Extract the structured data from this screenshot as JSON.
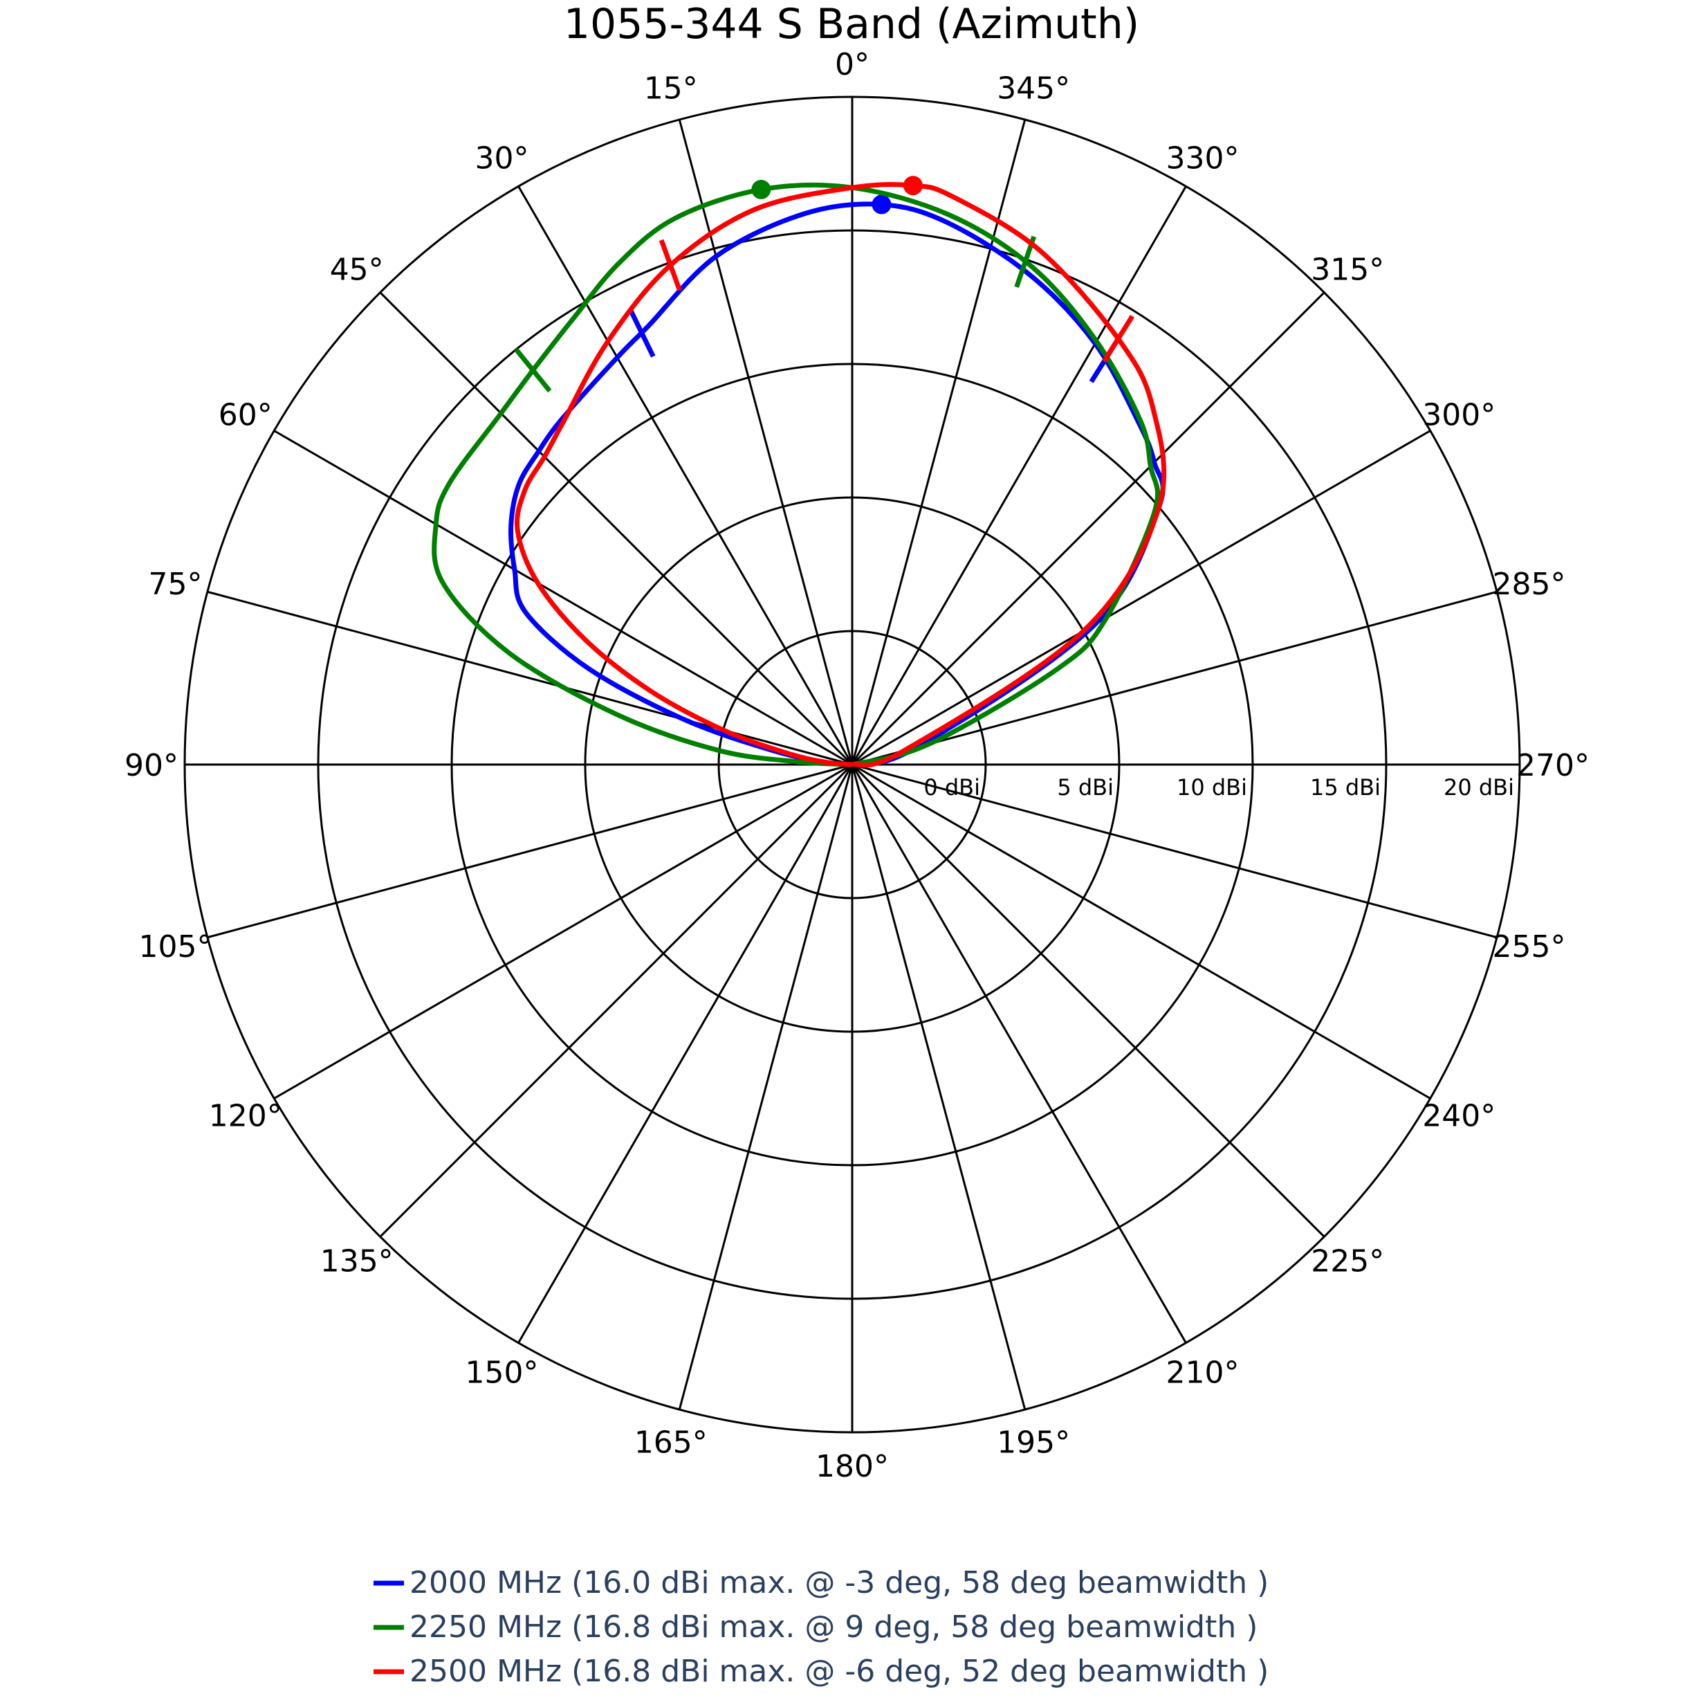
{
  "chart_data": {
    "type": "polar-line",
    "title": "1055-344 S Band (Azimuth)",
    "angular_axis": {
      "direction": "counterclockwise",
      "zero_at": "top",
      "tick_step_deg": 15,
      "tick_labels": [
        "0°",
        "15°",
        "30°",
        "45°",
        "60°",
        "75°",
        "90°",
        "105°",
        "120°",
        "135°",
        "150°",
        "165°",
        "180°",
        "195°",
        "210°",
        "225°",
        "240°",
        "255°",
        "270°",
        "285°",
        "300°",
        "315°",
        "330°",
        "345°"
      ]
    },
    "radial_axis": {
      "unit": "dBi",
      "range": [
        -5,
        20
      ],
      "tick_values": [
        0,
        5,
        10,
        15,
        20
      ],
      "tick_labels": [
        "0 dBi",
        "5 dBi",
        "10 dBi",
        "15 dBi",
        "20 dBi"
      ],
      "label_angle_deg": 270
    },
    "grid": true,
    "legend_position": "bottom",
    "series": [
      {
        "name": "2000 MHz (16.0 dBi max. @ -3 deg, 58 deg beamwidth )",
        "color": "#0000ff",
        "max_marker": {
          "angle_deg": -3,
          "value_dbi": 16.0
        },
        "beamwidth_markers_deg": [
          26,
          -32
        ],
        "points": [
          [
            -90,
            -5.0
          ],
          [
            -75,
            -2.5
          ],
          [
            -60,
            5.5
          ],
          [
            -50,
            10.0
          ],
          [
            -45,
            11.0
          ],
          [
            -40,
            11.7
          ],
          [
            -30,
            13.2
          ],
          [
            -20,
            14.5
          ],
          [
            -10,
            15.6
          ],
          [
            -3,
            16.0
          ],
          [
            5,
            15.7
          ],
          [
            15,
            14.7
          ],
          [
            25,
            13.1
          ],
          [
            30,
            12.6
          ],
          [
            40,
            11.9
          ],
          [
            45,
            11.6
          ],
          [
            50,
            11.3
          ],
          [
            55,
            10.6
          ],
          [
            60,
            9.6
          ],
          [
            65,
            8.5
          ],
          [
            70,
            5.5
          ],
          [
            75,
            1.5
          ],
          [
            80,
            -2.0
          ],
          [
            85,
            -4.0
          ],
          [
            90,
            -5.0
          ]
        ]
      },
      {
        "name": "2250 MHz (16.8 dBi max. @ 9 deg, 58 deg beamwidth )",
        "color": "#008000",
        "max_marker": {
          "angle_deg": 9,
          "value_dbi": 16.8
        },
        "beamwidth_markers_deg": [
          39,
          -19
        ],
        "points": [
          [
            -90,
            -5.0
          ],
          [
            -75,
            -2.0
          ],
          [
            -65,
            3.5
          ],
          [
            -60,
            6.0
          ],
          [
            -50,
            9.8
          ],
          [
            -45,
            10.8
          ],
          [
            -40,
            11.8
          ],
          [
            -30,
            13.3
          ],
          [
            -20,
            14.8
          ],
          [
            -10,
            15.9
          ],
          [
            0,
            16.6
          ],
          [
            9,
            16.8
          ],
          [
            18,
            16.5
          ],
          [
            25,
            15.7
          ],
          [
            32,
            14.7
          ],
          [
            39,
            14.0
          ],
          [
            45,
            13.6
          ],
          [
            55,
            13.4
          ],
          [
            60,
            13.0
          ],
          [
            66,
            11.8
          ],
          [
            72,
            8.5
          ],
          [
            78,
            4.0
          ],
          [
            84,
            0.0
          ],
          [
            87,
            -3.0
          ],
          [
            90,
            -5.0
          ]
        ]
      },
      {
        "name": "2500 MHz (16.8 dBi max. @ -6 deg, 52 deg beamwidth )",
        "color": "#ff0000",
        "max_marker": {
          "angle_deg": -6,
          "value_dbi": 16.8
        },
        "beamwidth_markers_deg": [
          20,
          -32
        ],
        "points": [
          [
            -90,
            -5.0
          ],
          [
            -75,
            -3.0
          ],
          [
            -60,
            5.0
          ],
          [
            -50,
            10.0
          ],
          [
            -40,
            12.5
          ],
          [
            -32,
            13.8
          ],
          [
            -20,
            15.5
          ],
          [
            -10,
            16.6
          ],
          [
            -6,
            16.8
          ],
          [
            0,
            16.6
          ],
          [
            10,
            16.1
          ],
          [
            20,
            14.9
          ],
          [
            30,
            13.3
          ],
          [
            40,
            11.8
          ],
          [
            45,
            11.3
          ],
          [
            50,
            11.0
          ],
          [
            55,
            10.3
          ],
          [
            60,
            8.6
          ],
          [
            65,
            6.0
          ],
          [
            70,
            3.0
          ],
          [
            75,
            0.0
          ],
          [
            80,
            -2.5
          ],
          [
            85,
            -4.0
          ],
          [
            90,
            -5.0
          ]
        ]
      }
    ]
  }
}
